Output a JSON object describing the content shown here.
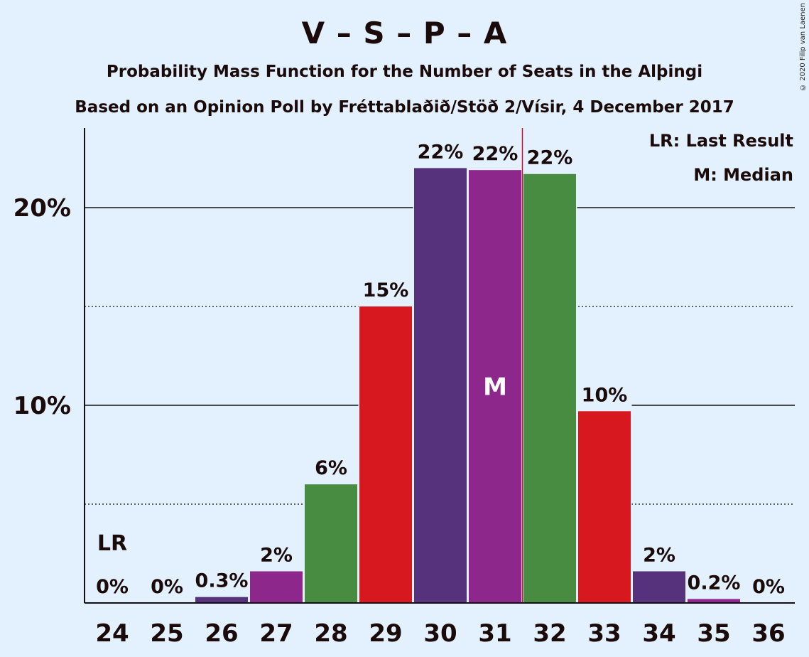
{
  "title": "V – S – P – A",
  "subtitle": "Probability Mass Function for the Number of Seats in the Alþingi",
  "subtitle2": "Based on an Opinion Poll by Fréttablaðið/Stöð 2/Vísir, 4 December 2017",
  "copyright": "© 2020 Filip van Laenen",
  "legend": {
    "last_result": "LR: Last Result",
    "median": "M: Median"
  },
  "chart_data": {
    "type": "bar",
    "categories": [
      "24",
      "25",
      "26",
      "27",
      "28",
      "29",
      "30",
      "31",
      "32",
      "33",
      "34",
      "35",
      "36"
    ],
    "values": [
      0,
      0,
      0.3,
      1.6,
      6.0,
      15.0,
      22.0,
      21.9,
      21.7,
      9.7,
      1.6,
      0.2,
      0
    ],
    "value_labels": [
      "0%",
      "0%",
      "0.3%",
      "2%",
      "6%",
      "15%",
      "22%",
      "22%",
      "22%",
      "10%",
      "2%",
      "0.2%",
      "0%"
    ],
    "colors": [
      "#558b3c",
      "#d7191f",
      "#56327d",
      "#8e278b",
      "#478c41",
      "#d7191f",
      "#56327d",
      "#8e278b",
      "#478c41",
      "#d7191f",
      "#56327d",
      "#8e278b",
      "#478c41"
    ],
    "ylim": [
      0,
      24
    ],
    "yticks": [
      {
        "value": 10,
        "label": "10%"
      },
      {
        "value": 20,
        "label": "20%"
      }
    ],
    "minor_gridlines": [
      5,
      15
    ],
    "last_result": {
      "seat": "24",
      "label": "LR"
    },
    "median": {
      "seat": "31",
      "label": "M"
    },
    "majority_line": {
      "between": [
        "31",
        "32"
      ]
    },
    "xlabel": "",
    "ylabel": ""
  }
}
